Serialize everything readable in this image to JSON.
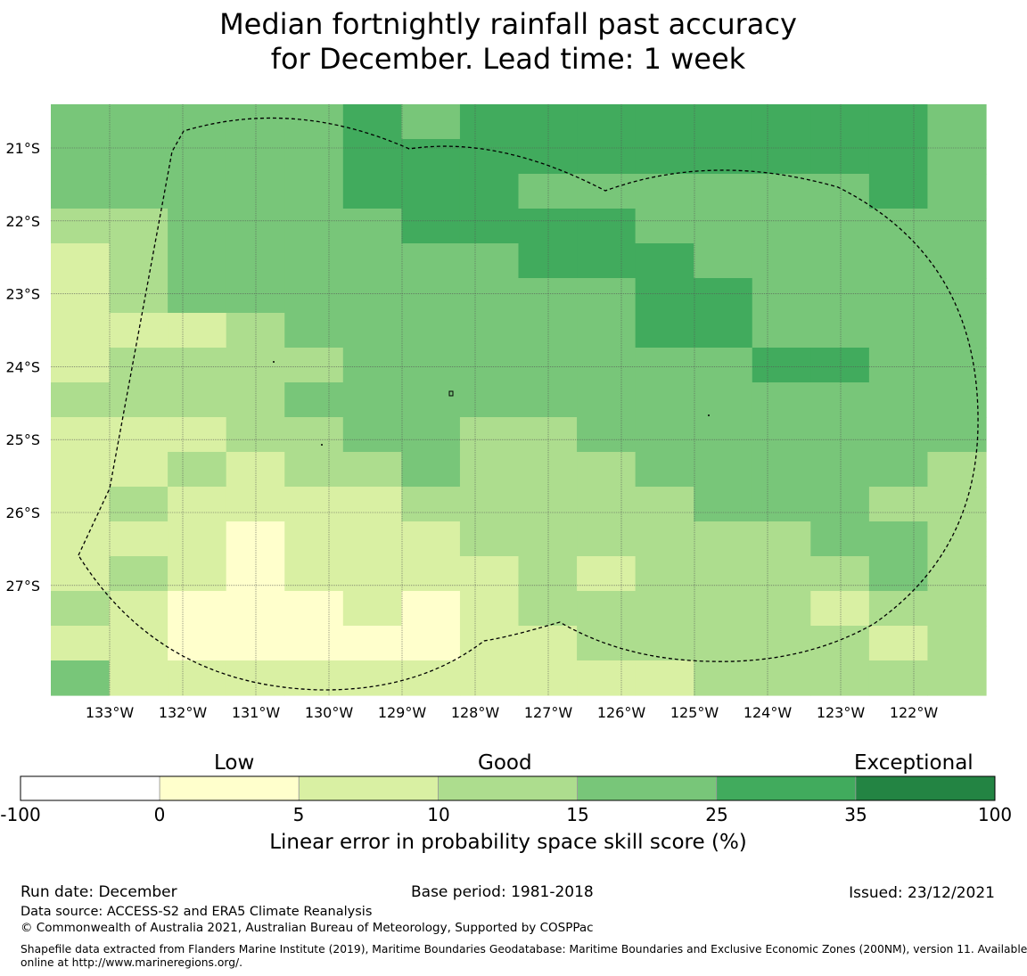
{
  "title": {
    "line1": "Median fortnightly rainfall past accuracy",
    "line2": "for December. Lead time: 1 week"
  },
  "map": {
    "lat_labels": [
      "21°S",
      "22°S",
      "23°S",
      "24°S",
      "25°S",
      "26°S",
      "27°S"
    ],
    "lon_labels": [
      "133°W",
      "132°W",
      "131°W",
      "130°W",
      "129°W",
      "128°W",
      "127°W",
      "126°W",
      "125°W",
      "124°W",
      "123°W",
      "122°W"
    ],
    "grid": [
      [
        4,
        4,
        4,
        4,
        4,
        5,
        4,
        5,
        5,
        5,
        5,
        5,
        5,
        5,
        5,
        4
      ],
      [
        4,
        4,
        4,
        4,
        4,
        5,
        5,
        5,
        5,
        5,
        5,
        5,
        5,
        5,
        5,
        4
      ],
      [
        4,
        4,
        4,
        4,
        4,
        5,
        5,
        5,
        4,
        4,
        4,
        4,
        4,
        4,
        5,
        4
      ],
      [
        3,
        3,
        4,
        4,
        4,
        4,
        5,
        5,
        5,
        5,
        4,
        4,
        4,
        4,
        4,
        4
      ],
      [
        2,
        3,
        4,
        4,
        4,
        4,
        4,
        4,
        5,
        5,
        5,
        4,
        4,
        4,
        4,
        4
      ],
      [
        2,
        3,
        4,
        4,
        4,
        4,
        4,
        4,
        4,
        4,
        5,
        5,
        4,
        4,
        4,
        4
      ],
      [
        2,
        2,
        2,
        3,
        4,
        4,
        4,
        4,
        4,
        4,
        5,
        5,
        4,
        4,
        4,
        4
      ],
      [
        2,
        3,
        3,
        3,
        3,
        4,
        4,
        4,
        4,
        4,
        4,
        4,
        5,
        5,
        4,
        4
      ],
      [
        3,
        3,
        3,
        3,
        4,
        4,
        4,
        4,
        4,
        4,
        4,
        4,
        4,
        4,
        4,
        4
      ],
      [
        2,
        2,
        2,
        3,
        3,
        4,
        4,
        3,
        3,
        4,
        4,
        4,
        4,
        4,
        4,
        4
      ],
      [
        2,
        2,
        3,
        2,
        3,
        3,
        4,
        3,
        3,
        3,
        4,
        4,
        4,
        4,
        4,
        3
      ],
      [
        2,
        3,
        2,
        2,
        2,
        2,
        3,
        3,
        3,
        3,
        3,
        4,
        4,
        4,
        3,
        3
      ],
      [
        2,
        2,
        2,
        1,
        2,
        2,
        2,
        3,
        3,
        3,
        3,
        3,
        3,
        4,
        4,
        3
      ],
      [
        2,
        3,
        2,
        1,
        2,
        2,
        2,
        2,
        3,
        2,
        3,
        3,
        3,
        3,
        4,
        3
      ],
      [
        3,
        2,
        1,
        1,
        1,
        2,
        1,
        2,
        3,
        3,
        3,
        3,
        3,
        2,
        3,
        3
      ],
      [
        2,
        2,
        1,
        1,
        1,
        1,
        1,
        2,
        2,
        3,
        3,
        3,
        3,
        3,
        2,
        3
      ],
      [
        4,
        2,
        2,
        2,
        2,
        2,
        2,
        2,
        2,
        2,
        2,
        3,
        3,
        3,
        3,
        3
      ]
    ]
  },
  "colorbar": {
    "category_labels": [
      "Low",
      "Good",
      "Exceptional"
    ],
    "ticks": [
      "-100",
      "0",
      "5",
      "10",
      "15",
      "25",
      "35",
      "100"
    ],
    "colors": [
      "#ffffff",
      "#ffffcc",
      "#d9f0a3",
      "#addd8e",
      "#78c679",
      "#41ab5d",
      "#238443"
    ],
    "axis_label": "Linear error in probability space skill score (%)"
  },
  "footer": {
    "run_date": "Run date: December",
    "base_period": "Base period: 1981-2018",
    "issued": "Issued: 23/12/2021",
    "data_source": "Data source: ACCESS-S2 and ERA5 Climate Reanalysis",
    "copyright": "© Commonwealth of Australia 2021, Australian Bureau of Meteorology, Supported by COSPPac",
    "shapefile_line1": "Shapefile data extracted from Flanders Marine Institute (2019), Maritime Boundaries Geodatabase: Maritime Boundaries and Exclusive Economic Zones (200NM), version 11. Available",
    "shapefile_line2": "online at http://www.marineregions.org/."
  }
}
